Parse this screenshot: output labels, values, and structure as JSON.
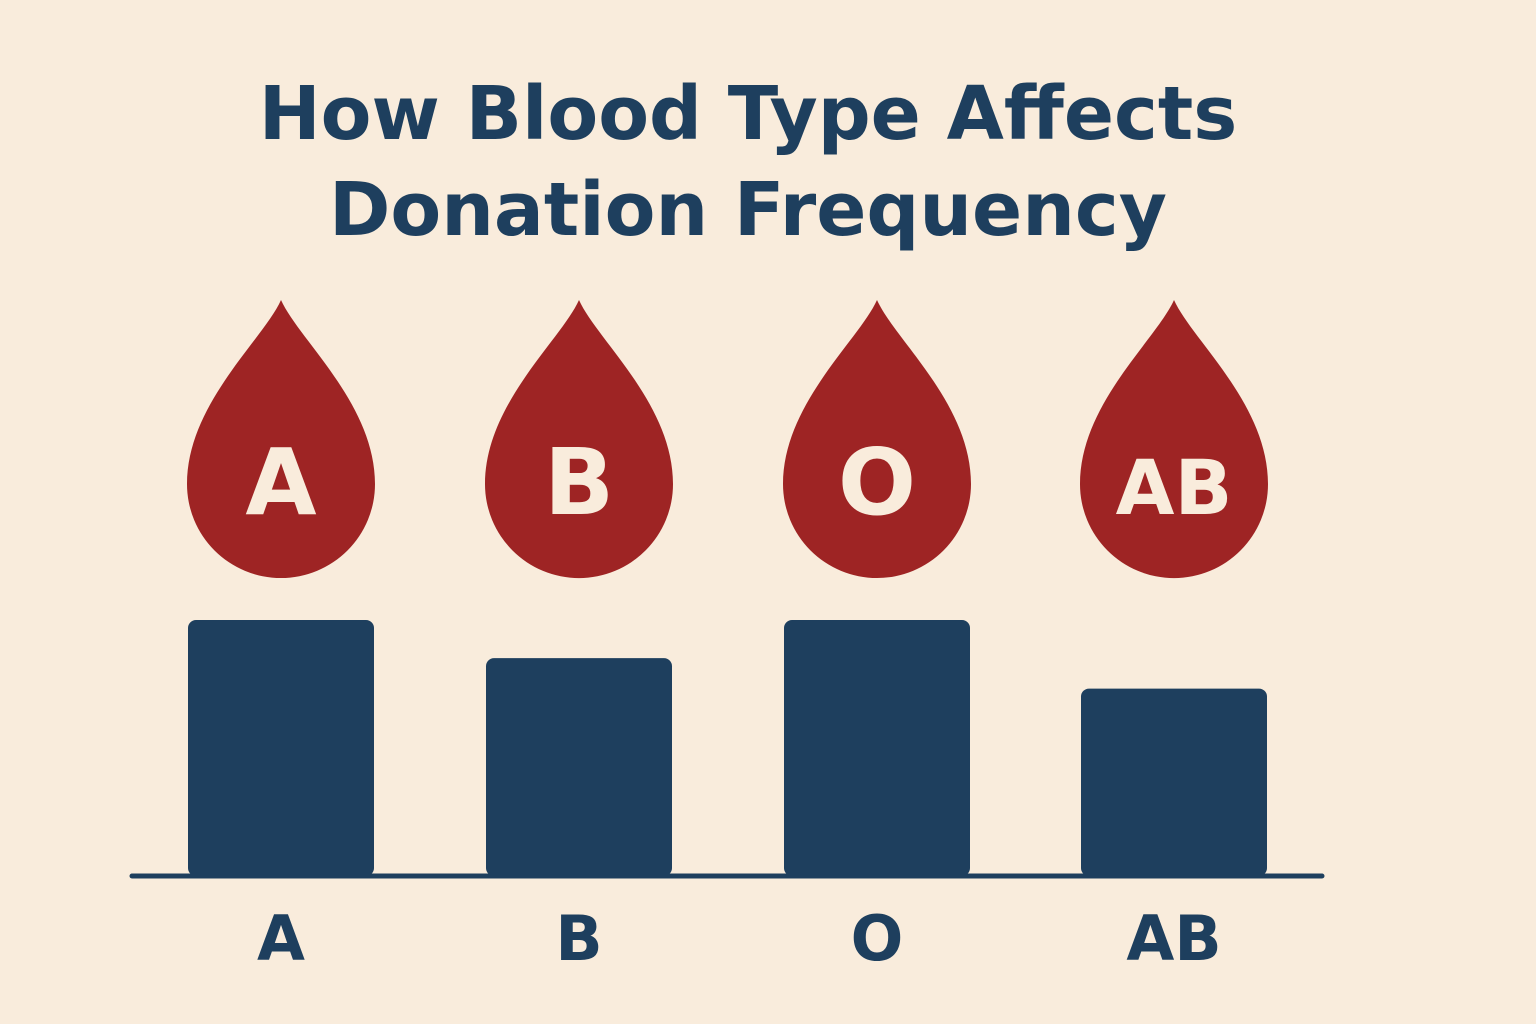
{
  "title_line1": "How Blood Type Affects",
  "title_line2": "Donation Frequency",
  "colors": {
    "background": "#f9ecdc",
    "bar": "#1e3f5e",
    "drop": "#9e2424",
    "drop_text": "#f9ecdc",
    "title": "#1e3f5e"
  },
  "chart_data": {
    "type": "bar",
    "title": "How Blood Type Affects Donation Frequency",
    "categories": [
      "A",
      "B",
      "O",
      "AB"
    ],
    "drop_labels": [
      "A",
      "B",
      "O",
      "AB"
    ],
    "values": [
      100,
      85,
      100,
      73
    ],
    "ylim": [
      0,
      100
    ],
    "grid": false,
    "legend": "none",
    "xlabel": "",
    "ylabel": ""
  }
}
